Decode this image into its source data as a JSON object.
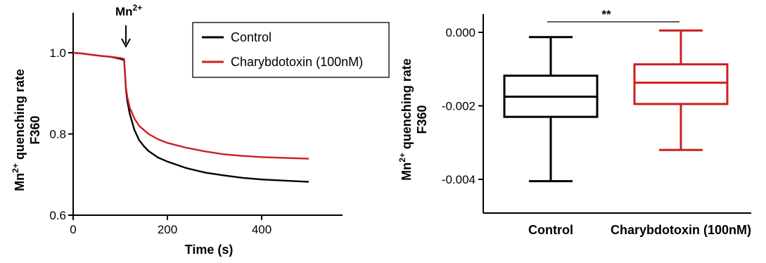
{
  "chart_data": [
    {
      "type": "line",
      "title": "",
      "xlabel": "Time (s)",
      "ylabel_line1": "Mn2+ quenching rate",
      "ylabel_line2": "F360",
      "ylabel_base": "Mn",
      "ylabel_sup": "2+",
      "ylabel_rest": " quenching rate",
      "xlim": [
        0,
        520
      ],
      "ylim": [
        0.6,
        1.1
      ],
      "xticks": [
        0,
        200,
        400
      ],
      "yticks": [
        0.6,
        0.8,
        1.0
      ],
      "ytick_labels": [
        "0.6",
        "0.8",
        "1.0"
      ],
      "legend_position": "top-right",
      "annotation": {
        "text_base": "Mn",
        "text_sup": "2+",
        "x": 110
      },
      "series": [
        {
          "name": "Control",
          "color": "#000000",
          "x": [
            0,
            20,
            40,
            60,
            80,
            100,
            108,
            110,
            112,
            115,
            120,
            130,
            140,
            150,
            160,
            180,
            200,
            240,
            280,
            320,
            360,
            400,
            450,
            500
          ],
          "y": [
            1.0,
            0.998,
            0.995,
            0.992,
            0.99,
            0.985,
            0.982,
            0.95,
            0.91,
            0.88,
            0.85,
            0.81,
            0.785,
            0.77,
            0.758,
            0.742,
            0.732,
            0.716,
            0.705,
            0.698,
            0.692,
            0.688,
            0.685,
            0.682
          ]
        },
        {
          "name": "Charybdotoxin (100nM)",
          "color": "#cc1f1f",
          "x": [
            0,
            20,
            40,
            60,
            80,
            100,
            108,
            110,
            112,
            115,
            120,
            130,
            140,
            150,
            160,
            180,
            200,
            240,
            280,
            320,
            360,
            400,
            450,
            500
          ],
          "y": [
            1.0,
            0.998,
            0.995,
            0.992,
            0.99,
            0.987,
            0.985,
            0.95,
            0.915,
            0.89,
            0.865,
            0.838,
            0.82,
            0.81,
            0.8,
            0.787,
            0.778,
            0.766,
            0.757,
            0.75,
            0.746,
            0.743,
            0.741,
            0.739
          ]
        }
      ]
    },
    {
      "type": "box",
      "title": "",
      "ylabel_line1": "Mn2+ quenching rate",
      "ylabel_line2": "F360",
      "ylabel_base": "Mn",
      "ylabel_sup": "2+",
      "ylabel_rest": " quenching rate",
      "ylim": [
        -0.005,
        0.0005
      ],
      "yticks": [
        0.0,
        -0.002,
        -0.004
      ],
      "ytick_labels": [
        "0.000",
        "-0.002",
        "-0.004"
      ],
      "categories": [
        "Control",
        "Charybdotoxin (100nM)"
      ],
      "significance": "**",
      "boxes": [
        {
          "name": "Control",
          "color": "#000000",
          "min": -0.00405,
          "q1": -0.0023,
          "median": -0.00175,
          "q3": -0.00118,
          "max": -0.00013
        },
        {
          "name": "Charybdotoxin (100nM)",
          "color": "#cc1f1f",
          "min": -0.0032,
          "q1": -0.00195,
          "median": -0.00137,
          "q3": -0.00087,
          "max": 5e-05
        }
      ]
    }
  ]
}
